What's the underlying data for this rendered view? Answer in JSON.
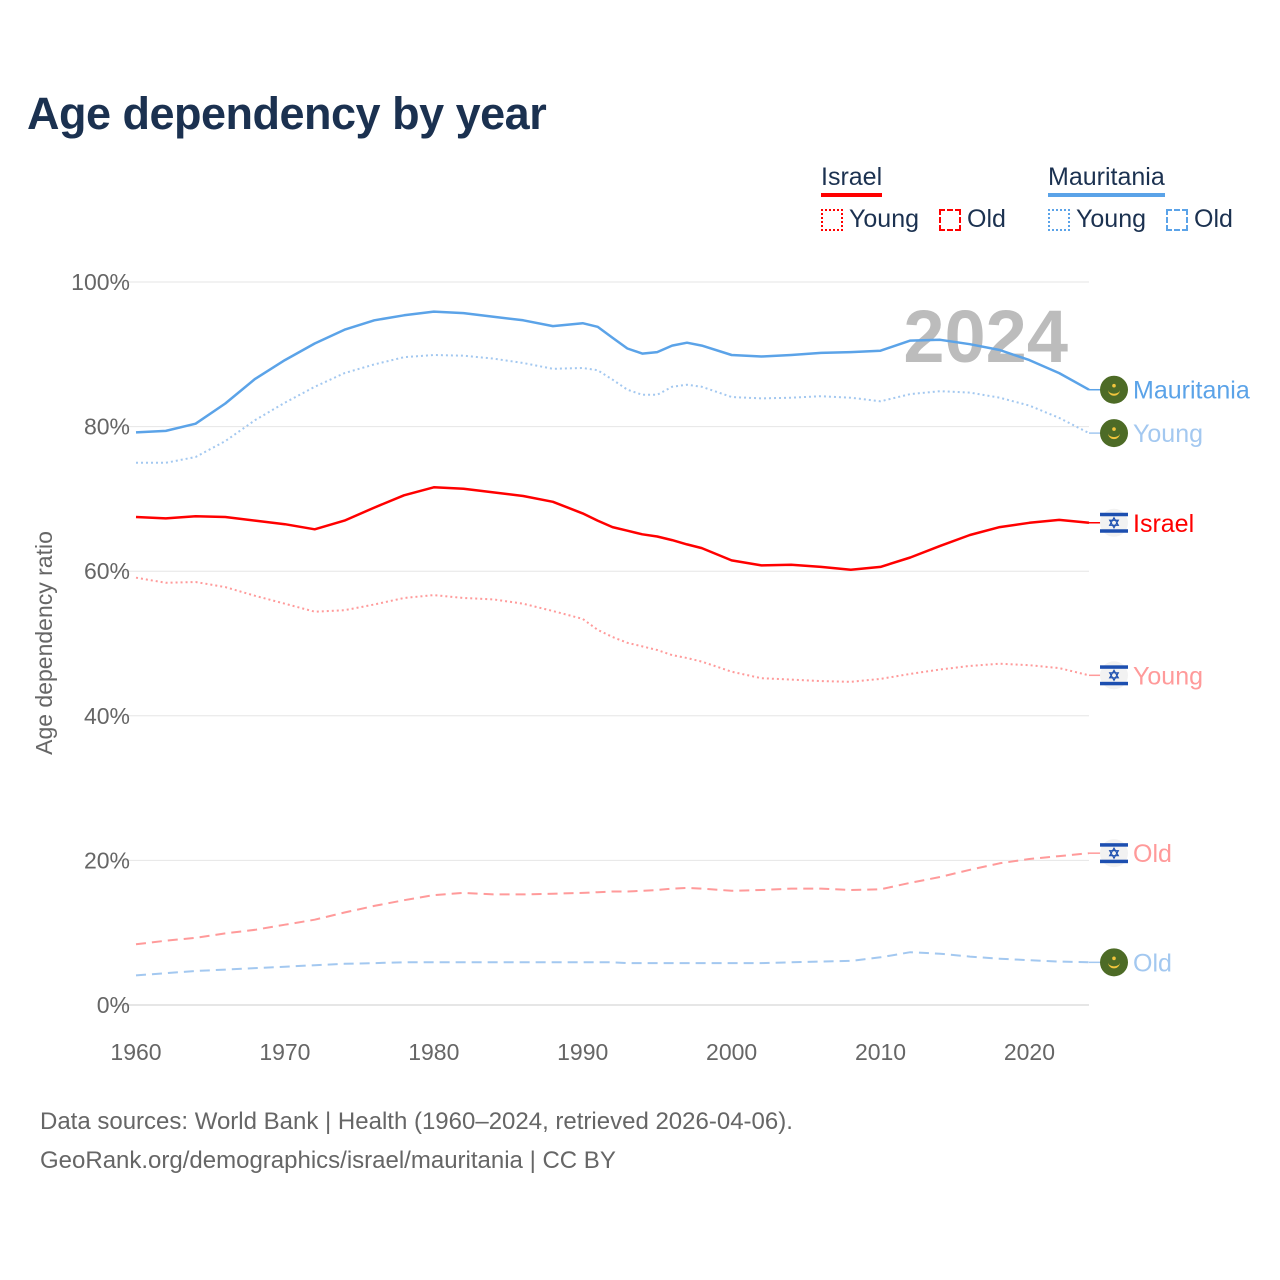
{
  "title": "Age dependency by year",
  "legend": {
    "groups": [
      {
        "name": "Israel",
        "color": "#ff0000",
        "items": [
          "Young",
          "Old"
        ]
      },
      {
        "name": "Mauritania",
        "color": "#5ba3e8",
        "items": [
          "Young",
          "Old"
        ]
      }
    ]
  },
  "footer": {
    "line1": "Data sources: World Bank | Health (1960–2024, retrieved 2026-04-06).",
    "line2": "GeoRank.org/demographics/israel/mauritania | CC BY"
  },
  "chart_data": {
    "type": "line",
    "title": "Age dependency by year",
    "ylabel": "Age dependency ratio",
    "xlabel": "",
    "year_watermark": "2024",
    "xlim": [
      1960,
      2024
    ],
    "ylim": [
      0,
      100
    ],
    "x_ticks": [
      "1960",
      "1970",
      "1980",
      "1990",
      "2000",
      "2010",
      "2020"
    ],
    "y_ticks": [
      "0%",
      "20%",
      "40%",
      "60%",
      "80%",
      "100%"
    ],
    "grid": true,
    "legend_position": "top-right",
    "x": [
      1960,
      1962,
      1964,
      1966,
      1968,
      1970,
      1972,
      1974,
      1976,
      1978,
      1980,
      1982,
      1984,
      1986,
      1988,
      1990,
      1991,
      1992,
      1993,
      1994,
      1995,
      1996,
      1997,
      1998,
      2000,
      2002,
      2004,
      2006,
      2008,
      2010,
      2012,
      2014,
      2016,
      2018,
      2020,
      2022,
      2024
    ],
    "series": [
      {
        "name": "Mauritania",
        "label": "Mauritania",
        "country": "mauritania",
        "style": "solid",
        "color": "#5ba3e8",
        "values": [
          79.2,
          79.4,
          80.4,
          83.2,
          86.6,
          89.2,
          91.5,
          93.4,
          94.7,
          95.4,
          95.9,
          95.7,
          95.2,
          94.7,
          93.9,
          94.3,
          93.8,
          92.3,
          90.8,
          90.1,
          90.3,
          91.2,
          91.6,
          91.2,
          89.9,
          89.7,
          89.9,
          90.2,
          90.3,
          90.5,
          91.9,
          92.0,
          91.4,
          90.6,
          89.2,
          87.4,
          85.1
        ]
      },
      {
        "name": "Mauritania Young",
        "label": "Young",
        "country": "mauritania",
        "style": "dotted",
        "color": "#a3c8f0",
        "values": [
          75.0,
          75.0,
          75.8,
          78.0,
          80.9,
          83.3,
          85.5,
          87.4,
          88.6,
          89.6,
          89.9,
          89.8,
          89.4,
          88.8,
          88.0,
          88.1,
          87.8,
          86.5,
          85.1,
          84.4,
          84.4,
          85.5,
          85.8,
          85.5,
          84.1,
          83.9,
          84.0,
          84.2,
          84.0,
          83.5,
          84.5,
          84.9,
          84.7,
          84.0,
          82.9,
          81.2,
          79.1
        ]
      },
      {
        "name": "Israel",
        "label": "Israel",
        "country": "israel",
        "style": "solid",
        "color": "#ff0000",
        "values": [
          67.5,
          67.3,
          67.6,
          67.5,
          67.0,
          66.5,
          65.8,
          67.0,
          68.8,
          70.5,
          71.6,
          71.4,
          70.9,
          70.4,
          69.6,
          68.0,
          67.0,
          66.1,
          65.6,
          65.1,
          64.8,
          64.3,
          63.7,
          63.2,
          61.5,
          60.8,
          60.9,
          60.6,
          60.2,
          60.6,
          61.9,
          63.5,
          65.0,
          66.1,
          66.7,
          67.1,
          66.7
        ]
      },
      {
        "name": "Israel Young",
        "label": "Young",
        "country": "israel",
        "style": "dotted",
        "color": "#ff9a9a",
        "values": [
          59.1,
          58.4,
          58.5,
          57.8,
          56.6,
          55.5,
          54.4,
          54.6,
          55.4,
          56.3,
          56.7,
          56.3,
          56.1,
          55.5,
          54.5,
          53.4,
          51.9,
          50.9,
          50.1,
          49.6,
          49.1,
          48.4,
          48.0,
          47.5,
          46.1,
          45.2,
          45.0,
          44.8,
          44.7,
          45.1,
          45.8,
          46.4,
          46.9,
          47.2,
          47.0,
          46.6,
          45.6
        ]
      },
      {
        "name": "Israel Old",
        "label": "Old",
        "country": "israel",
        "style": "dashed",
        "color": "#ff9a9a",
        "values": [
          8.4,
          8.9,
          9.3,
          9.9,
          10.4,
          11.1,
          11.8,
          12.8,
          13.7,
          14.5,
          15.2,
          15.5,
          15.3,
          15.3,
          15.4,
          15.5,
          15.6,
          15.7,
          15.7,
          15.8,
          15.9,
          16.1,
          16.2,
          16.1,
          15.8,
          15.9,
          16.1,
          16.1,
          15.9,
          16.0,
          16.9,
          17.7,
          18.7,
          19.6,
          20.2,
          20.6,
          21.0
        ]
      },
      {
        "name": "Mauritania Old",
        "label": "Old",
        "country": "mauritania",
        "style": "dashed",
        "color": "#a3c8f0",
        "values": [
          4.1,
          4.4,
          4.7,
          4.9,
          5.1,
          5.3,
          5.5,
          5.7,
          5.8,
          5.9,
          5.9,
          5.9,
          5.9,
          5.9,
          5.9,
          5.9,
          5.9,
          5.9,
          5.8,
          5.8,
          5.8,
          5.8,
          5.8,
          5.8,
          5.8,
          5.8,
          5.9,
          6.0,
          6.1,
          6.6,
          7.3,
          7.1,
          6.7,
          6.4,
          6.2,
          6.0,
          5.9
        ]
      }
    ]
  }
}
